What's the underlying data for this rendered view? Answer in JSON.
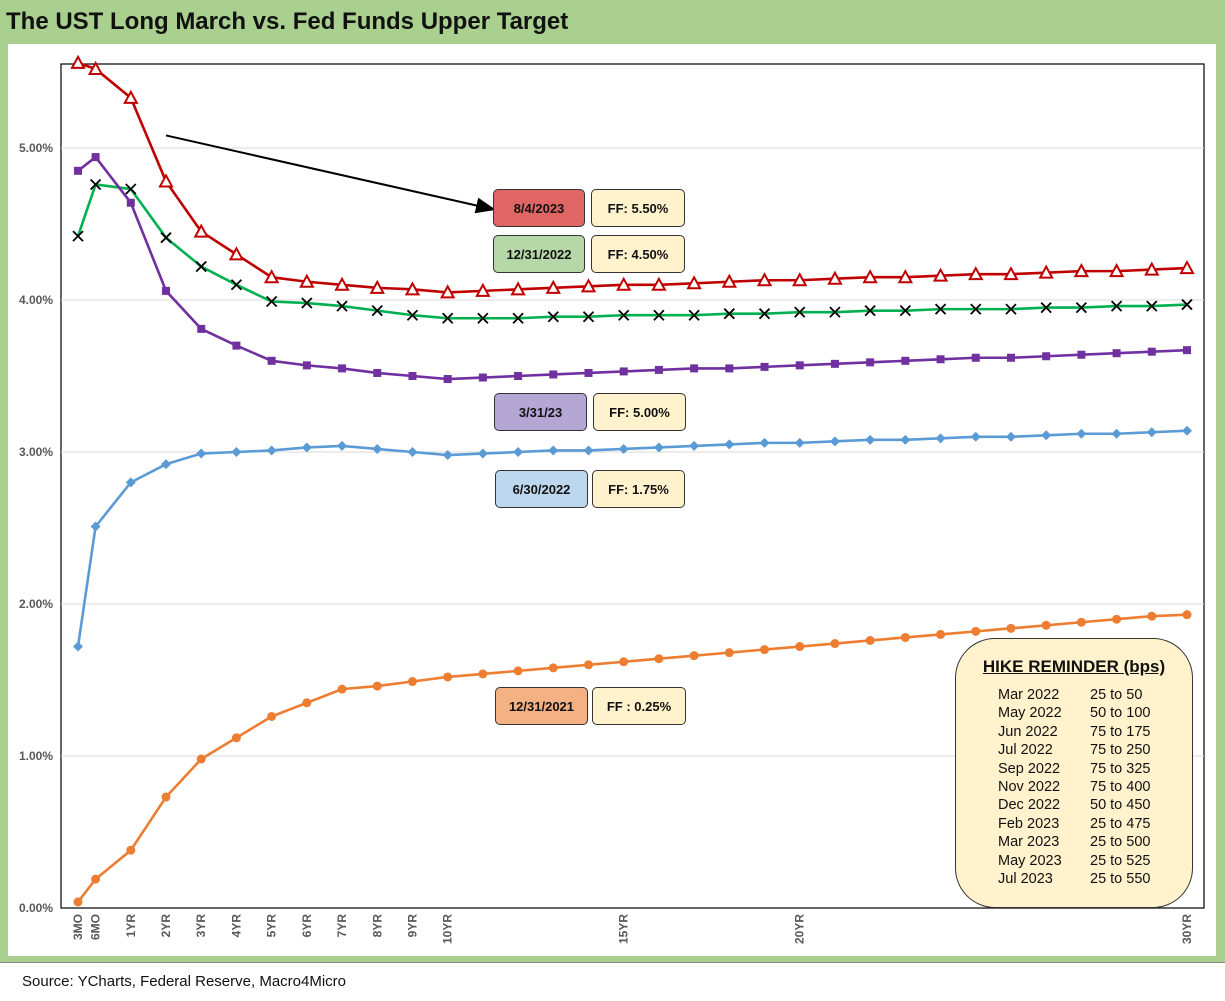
{
  "title": "The UST Long March vs. Fed Funds Upper Target",
  "source": "Source: YCharts, Federal Reserve, Macro4Micro",
  "colors": {
    "frame": "#a9d08e",
    "aug2023": "#c00000",
    "dec2022": "#00b050",
    "dec2022_marker": "#000000",
    "mar2023": "#7030a0",
    "jun2022": "#5b9bd5",
    "dec2021": "#ed7d31",
    "ff_box": "#fff2cc"
  },
  "chart_data": {
    "type": "line",
    "title": "The UST Long March vs. Fed Funds Upper Target",
    "xlabel": "",
    "ylabel": "",
    "ylim": [
      0,
      5.5
    ],
    "yticks": [
      "0.00%",
      "1.00%",
      "2.00%",
      "3.00%",
      "4.00%",
      "5.00%"
    ],
    "x": [
      0.25,
      0.5,
      1,
      1.5,
      2,
      2.5,
      3,
      3.5,
      4,
      4.5,
      5,
      5.5,
      6,
      6.5,
      7,
      7.5,
      8,
      8.5,
      9,
      9.5,
      10,
      10.5,
      11,
      11.5,
      12,
      12.5,
      13,
      13.5,
      14,
      14.5,
      15,
      15.5,
      16
    ],
    "tick_labels": [
      {
        "x": 0.25,
        "label": "3MO"
      },
      {
        "x": 0.5,
        "label": "6MO"
      },
      {
        "x": 1,
        "label": "1YR"
      },
      {
        "x": 1.5,
        "label": "2YR"
      },
      {
        "x": 2,
        "label": "3YR"
      },
      {
        "x": 2.5,
        "label": "4YR"
      },
      {
        "x": 3,
        "label": "5YR"
      },
      {
        "x": 3.5,
        "label": "6YR"
      },
      {
        "x": 4,
        "label": "7YR"
      },
      {
        "x": 4.5,
        "label": "8YR"
      },
      {
        "x": 5,
        "label": "9YR"
      },
      {
        "x": 5.5,
        "label": "10YR"
      },
      {
        "x": 8,
        "label": "15YR"
      },
      {
        "x": 10.5,
        "label": "20YR"
      },
      {
        "x": 16,
        "label": "30YR"
      }
    ],
    "series": [
      {
        "name": "8/4/2023",
        "ff": "FF: 5.50%",
        "marker": "triangle",
        "color": "#c00000",
        "values": [
          5.56,
          5.52,
          5.33,
          4.78,
          4.45,
          4.3,
          4.15,
          4.12,
          4.1,
          4.08,
          4.07,
          4.05,
          4.06,
          4.07,
          4.08,
          4.09,
          4.1,
          4.1,
          4.11,
          4.12,
          4.13,
          4.13,
          4.14,
          4.15,
          4.15,
          4.16,
          4.17,
          4.17,
          4.18,
          4.19,
          4.19,
          4.2,
          4.21
        ]
      },
      {
        "name": "12/31/2022",
        "ff": "FF: 4.50%",
        "marker": "x",
        "color": "#00b050",
        "values": [
          4.42,
          4.76,
          4.73,
          4.41,
          4.22,
          4.1,
          3.99,
          3.98,
          3.96,
          3.93,
          3.9,
          3.88,
          3.88,
          3.88,
          3.89,
          3.89,
          3.9,
          3.9,
          3.9,
          3.91,
          3.91,
          3.92,
          3.92,
          3.93,
          3.93,
          3.94,
          3.94,
          3.94,
          3.95,
          3.95,
          3.96,
          3.96,
          3.97
        ]
      },
      {
        "name": "3/31/23",
        "ff": "FF: 5.00%",
        "marker": "square",
        "color": "#7030a0",
        "values": [
          4.85,
          4.94,
          4.64,
          4.06,
          3.81,
          3.7,
          3.6,
          3.57,
          3.55,
          3.52,
          3.5,
          3.48,
          3.49,
          3.5,
          3.51,
          3.52,
          3.53,
          3.54,
          3.55,
          3.55,
          3.56,
          3.57,
          3.58,
          3.59,
          3.6,
          3.61,
          3.62,
          3.62,
          3.63,
          3.64,
          3.65,
          3.66,
          3.67
        ]
      },
      {
        "name": "6/30/2022",
        "ff": "FF: 1.75%",
        "marker": "diamond",
        "color": "#5b9bd5",
        "values": [
          1.72,
          2.51,
          2.8,
          2.92,
          2.99,
          3.0,
          3.01,
          3.03,
          3.04,
          3.02,
          3.0,
          2.98,
          2.99,
          3.0,
          3.01,
          3.01,
          3.02,
          3.03,
          3.04,
          3.05,
          3.06,
          3.06,
          3.07,
          3.08,
          3.08,
          3.09,
          3.1,
          3.1,
          3.11,
          3.12,
          3.12,
          3.13,
          3.14
        ]
      },
      {
        "name": "12/31/2021",
        "ff": "FF : 0.25%",
        "marker": "circle",
        "color": "#ed7d31",
        "values": [
          0.04,
          0.19,
          0.38,
          0.73,
          0.98,
          1.12,
          1.26,
          1.35,
          1.44,
          1.46,
          1.49,
          1.52,
          1.54,
          1.56,
          1.58,
          1.6,
          1.62,
          1.64,
          1.66,
          1.68,
          1.7,
          1.72,
          1.74,
          1.76,
          1.78,
          1.8,
          1.82,
          1.84,
          1.86,
          1.88,
          1.9,
          1.92,
          1.93
        ]
      }
    ],
    "annotations": [
      {
        "type": "arrow",
        "from_series": "8/4/2023",
        "to_x": 1.5
      }
    ]
  },
  "tags": [
    {
      "date": "8/4/2023",
      "ff": "FF: 5.50%",
      "color": "#e06666"
    },
    {
      "date": "12/31/2022",
      "ff": "FF: 4.50%",
      "color": "#b6d7a8"
    },
    {
      "date": "3/31/23",
      "ff": "FF: 5.00%",
      "color": "#b4a7d6"
    },
    {
      "date": "6/30/2022",
      "ff": "FF: 1.75%",
      "color": "#bdd7ee"
    },
    {
      "date": "12/31/2021",
      "ff": "FF : 0.25%",
      "color": "#f4b183"
    }
  ],
  "hike_reminder": {
    "title": "HIKE REMINDER (bps)",
    "rows": [
      {
        "month": "Mar 2022",
        "range": "25 to 50"
      },
      {
        "month": "May 2022",
        "range": "50 to 100"
      },
      {
        "month": "Jun 2022",
        "range": "75 to 175"
      },
      {
        "month": "Jul 2022",
        "range": "75 to 250"
      },
      {
        "month": "Sep 2022",
        "range": "75 to 325"
      },
      {
        "month": "Nov 2022",
        "range": "75 to 400"
      },
      {
        "month": "Dec 2022",
        "range": "50 to 450"
      },
      {
        "month": "Feb 2023",
        "range": "25 to 475"
      },
      {
        "month": "Mar 2023",
        "range": "25 to 500"
      },
      {
        "month": "May 2023",
        "range": "25 to 525"
      },
      {
        "month": "Jul 2023",
        "range": "25 to 550"
      }
    ]
  }
}
